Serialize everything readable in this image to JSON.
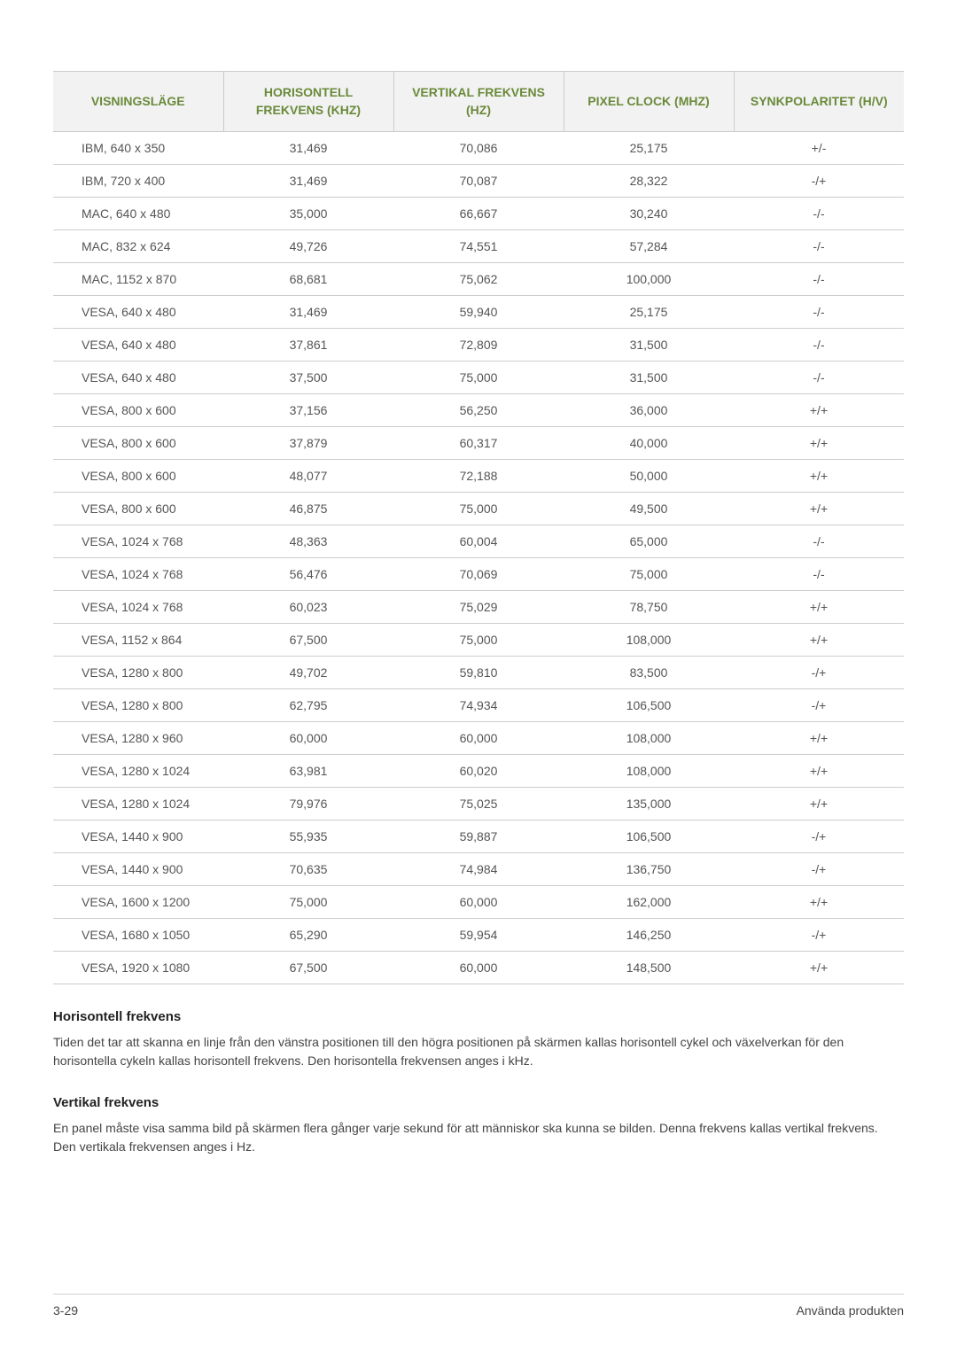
{
  "table": {
    "columns": [
      "VISNINGSLÄGE",
      "HORISONTELL FREKVENS (KHZ)",
      "VERTIKAL FREKVENS (HZ)",
      "PIXEL CLOCK (MHZ)",
      "SYNKPOLARITET (H/V)"
    ],
    "rows": [
      [
        "IBM, 640 x 350",
        "31,469",
        "70,086",
        "25,175",
        "+/-"
      ],
      [
        "IBM, 720 x 400",
        "31,469",
        "70,087",
        "28,322",
        "-/+"
      ],
      [
        "MAC, 640 x 480",
        "35,000",
        "66,667",
        "30,240",
        "-/-"
      ],
      [
        "MAC, 832 x 624",
        "49,726",
        "74,551",
        "57,284",
        "-/-"
      ],
      [
        "MAC, 1152 x 870",
        "68,681",
        "75,062",
        "100,000",
        "-/-"
      ],
      [
        "VESA, 640 x 480",
        "31,469",
        "59,940",
        "25,175",
        "-/-"
      ],
      [
        "VESA, 640 x 480",
        "37,861",
        "72,809",
        "31,500",
        "-/-"
      ],
      [
        "VESA, 640 x 480",
        "37,500",
        "75,000",
        "31,500",
        "-/-"
      ],
      [
        "VESA, 800 x 600",
        "37,156",
        "56,250",
        "36,000",
        "+/+"
      ],
      [
        "VESA, 800 x 600",
        "37,879",
        "60,317",
        "40,000",
        "+/+"
      ],
      [
        "VESA, 800 x 600",
        "48,077",
        "72,188",
        "50,000",
        "+/+"
      ],
      [
        "VESA, 800 x 600",
        "46,875",
        "75,000",
        "49,500",
        "+/+"
      ],
      [
        "VESA, 1024 x 768",
        "48,363",
        "60,004",
        "65,000",
        "-/-"
      ],
      [
        "VESA, 1024 x 768",
        "56,476",
        "70,069",
        "75,000",
        "-/-"
      ],
      [
        "VESA, 1024 x 768",
        "60,023",
        "75,029",
        "78,750",
        "+/+"
      ],
      [
        "VESA, 1152 x 864",
        "67,500",
        "75,000",
        "108,000",
        "+/+"
      ],
      [
        "VESA, 1280 x 800",
        "49,702",
        "59,810",
        "83,500",
        "-/+"
      ],
      [
        "VESA, 1280 x 800",
        "62,795",
        "74,934",
        "106,500",
        "-/+"
      ],
      [
        "VESA, 1280 x 960",
        "60,000",
        "60,000",
        "108,000",
        "+/+"
      ],
      [
        "VESA, 1280 x 1024",
        "63,981",
        "60,020",
        "108,000",
        "+/+"
      ],
      [
        "VESA, 1280 x 1024",
        "79,976",
        "75,025",
        "135,000",
        "+/+"
      ],
      [
        "VESA, 1440 x 900",
        "55,935",
        "59,887",
        "106,500",
        "-/+"
      ],
      [
        "VESA, 1440 x 900",
        "70,635",
        "74,984",
        "136,750",
        "-/+"
      ],
      [
        "VESA, 1600 x 1200",
        "75,000",
        "60,000",
        "162,000",
        "+/+"
      ],
      [
        "VESA, 1680 x 1050",
        "65,290",
        "59,954",
        "146,250",
        "-/+"
      ],
      [
        "VESA, 1920 x 1080",
        "67,500",
        "60,000",
        "148,500",
        "+/+"
      ]
    ]
  },
  "sections": {
    "horizontal": {
      "heading": "Horisontell frekvens",
      "body": "Tiden det tar att skanna en linje från den vänstra positionen till den högra positionen på skärmen kallas horisontell cykel och växelverkan för den horisontella cykeln kallas horisontell frekvens. Den horisontella frekvensen anges i kHz."
    },
    "vertical": {
      "heading": "Vertikal frekvens",
      "body": "En panel måste visa samma bild på skärmen flera gånger varje sekund för att människor ska kunna se bilden. Denna frekvens kallas vertikal frekvens. Den vertikala frekvensen anges i Hz."
    }
  },
  "footer": {
    "page_number": "3-29",
    "section_label": "Använda produkten"
  },
  "styles": {
    "header_bg": "#f2f2f2",
    "header_text_color": "#6a8a3a",
    "border_color": "#cccccc",
    "body_text_color": "#555555",
    "font_family": "Arial, Helvetica, sans-serif"
  }
}
